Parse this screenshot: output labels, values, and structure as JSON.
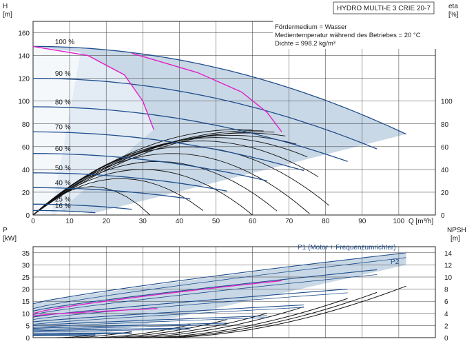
{
  "chart_data": [
    {
      "type": "line",
      "title": "HYDRO MULTI-E 3 CRIE 20-7",
      "info_lines": [
        "Fördermedium = Wasser",
        "Medientemperatur während des Betriebes = 20 °C",
        "Dichte = 998.2 kg/m³"
      ],
      "xlabel": "Q [m³/h]",
      "ylabel": "H",
      "ylabel_unit": "[m]",
      "y2label": "eta",
      "y2label_unit": "[%]",
      "xlim": [
        0,
        110
      ],
      "ylim": [
        0,
        170
      ],
      "x_ticks": [
        "0",
        "10",
        "20",
        "30",
        "40",
        "50",
        "60",
        "70",
        "80",
        "90",
        "100"
      ],
      "y_ticks": [
        "0",
        "20",
        "40",
        "60",
        "80",
        "100",
        "120",
        "140",
        "160"
      ],
      "y2_ticks": [
        "0",
        "20",
        "40",
        "60",
        "80",
        "100"
      ],
      "grid": true,
      "speed_curves": [
        {
          "label": "100 %",
          "shutoff_head": 148,
          "end_flow": 102,
          "end_head": 71
        },
        {
          "label": "90 %",
          "shutoff_head": 120,
          "end_flow": 94,
          "end_head": 58
        },
        {
          "label": "80 %",
          "shutoff_head": 95,
          "end_flow": 86,
          "end_head": 47
        },
        {
          "label": "70 %",
          "shutoff_head": 73,
          "end_flow": 74,
          "end_head": 39
        },
        {
          "label": "60 %",
          "shutoff_head": 54,
          "end_flow": 64,
          "end_head": 30
        },
        {
          "label": "50 %",
          "shutoff_head": 37,
          "end_flow": 53,
          "end_head": 21
        },
        {
          "label": "40 %",
          "shutoff_head": 24,
          "end_flow": 43,
          "end_head": 14
        },
        {
          "label": "25 %",
          "shutoff_head": 9.5,
          "end_flow": 27,
          "end_head": 5
        },
        {
          "label": "16 %",
          "shutoff_head": 4,
          "end_flow": 17,
          "end_head": 2
        }
      ],
      "efficiency_curves_peak_eta": [
        75,
        74,
        73,
        72,
        70,
        68,
        65,
        60,
        54,
        47,
        40,
        32,
        25
      ],
      "limit_curves": [
        {
          "points": [
            [
              0,
              148
            ],
            [
              15,
              140
            ],
            [
              25,
              123
            ],
            [
              30,
              100
            ],
            [
              33,
              75
            ]
          ]
        },
        {
          "points": [
            [
              27,
              142
            ],
            [
              45,
              125
            ],
            [
              57,
              108
            ],
            [
              64,
              90
            ],
            [
              68,
              73
            ]
          ]
        }
      ]
    },
    {
      "type": "line",
      "ylabel": "P",
      "ylabel_unit": "[kW]",
      "y2label": "NPSH",
      "y2label_unit": "[m]",
      "xlim": [
        0,
        110
      ],
      "ylim": [
        0,
        37.5
      ],
      "y_ticks": [
        "0",
        "5",
        "10",
        "15",
        "20",
        "25",
        "30",
        "35"
      ],
      "y2_ticks": [
        "0",
        "2",
        "4",
        "6",
        "8",
        "10",
        "12",
        "14"
      ],
      "grid": true,
      "labels": [
        "P1 (Motor + Frequenzumrichter)",
        "P2"
      ],
      "power_curves": [
        {
          "p1_start": 14,
          "p1_end": 35,
          "p2_start": 12,
          "p2_end": 33,
          "end_flow": 102
        },
        {
          "p1_start": 11,
          "p1_end": 28,
          "p2_start": 9.5,
          "p2_end": 26,
          "end_flow": 94
        },
        {
          "p1_start": 8.5,
          "p1_end": 20,
          "p2_start": 7.5,
          "p2_end": 18.5,
          "end_flow": 86
        },
        {
          "p1_start": 6.5,
          "p1_end": 13.5,
          "p2_start": 5.5,
          "p2_end": 12.5,
          "end_flow": 74
        },
        {
          "p1_start": 5,
          "p1_end": 9,
          "p2_start": 4.2,
          "p2_end": 8.3,
          "end_flow": 64
        },
        {
          "p1_start": 3.8,
          "p1_end": 6,
          "p2_start": 3.2,
          "p2_end": 5.4,
          "end_flow": 53
        },
        {
          "p1_start": 2.8,
          "p1_end": 4,
          "p2_start": 2.3,
          "p2_end": 3.5,
          "end_flow": 43
        },
        {
          "p1_start": 1.6,
          "p1_end": 2,
          "p2_start": 1.3,
          "p2_end": 1.7,
          "end_flow": 27
        },
        {
          "p1_start": 1,
          "p1_end": 1.2,
          "p2_start": 0.8,
          "p2_end": 1,
          "end_flow": 17
        }
      ]
    }
  ],
  "colors": {
    "speed_curve": "#1f4e8c",
    "efficiency_curve": "#111111",
    "limit_curve": "#e020c8",
    "region_light": "#c9d8e6",
    "region_lighter": "#e6eef6",
    "grid": "#333333"
  }
}
